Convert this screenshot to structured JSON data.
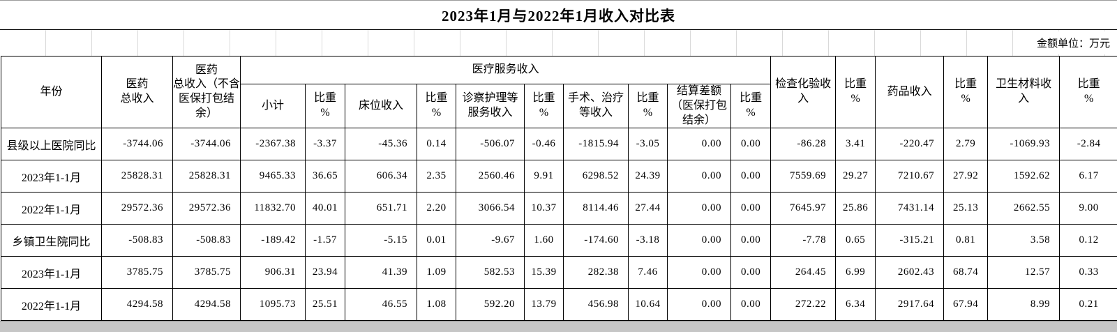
{
  "title": "2023年1月与2022年1月收入对比表",
  "unit_note": "金额单位：万元",
  "header": {
    "year": "年份",
    "med_total_income": "医药\n总收入",
    "med_total_income_excl": "医药\n总收入（不含\n医保打包结\n余）",
    "medical_service_income": "医疗服务收入",
    "subtotal": "小计",
    "weight": "比重\n%",
    "bed_income": "床位收入",
    "exam_nursing_income": "诊察护理等\n服务收入",
    "surgery_income": "手术、治疗\n等收入",
    "settlement_diff": "结算差额\n（医保打包\n结余）",
    "lab_income": "检查化验收\n入",
    "drug_income": "药品收入",
    "material_income": "卫生材料收\n入"
  },
  "rows": [
    {
      "label": "县级以上医院同比",
      "values": [
        "-3744.06",
        "-3744.06",
        "-2367.38",
        "-3.37",
        "-45.36",
        "0.14",
        "-506.07",
        "-0.46",
        "-1815.94",
        "-3.05",
        "0.00",
        "0.00",
        "-86.28",
        "3.41",
        "-220.47",
        "2.79",
        "-1069.93",
        "-2.84"
      ]
    },
    {
      "label": "2023年1-1月",
      "values": [
        "25828.31",
        "25828.31",
        "9465.33",
        "36.65",
        "606.34",
        "2.35",
        "2560.46",
        "9.91",
        "6298.52",
        "24.39",
        "0.00",
        "0.00",
        "7559.69",
        "29.27",
        "7210.67",
        "27.92",
        "1592.62",
        "6.17"
      ]
    },
    {
      "label": "2022年1-1月",
      "values": [
        "29572.36",
        "29572.36",
        "11832.70",
        "40.01",
        "651.71",
        "2.20",
        "3066.54",
        "10.37",
        "8114.46",
        "27.44",
        "0.00",
        "0.00",
        "7645.97",
        "25.86",
        "7431.14",
        "25.13",
        "2662.55",
        "9.00"
      ]
    },
    {
      "label": "乡镇卫生院同比",
      "values": [
        "-508.83",
        "-508.83",
        "-189.42",
        "-1.57",
        "-5.15",
        "0.01",
        "-9.67",
        "1.60",
        "-174.60",
        "-3.18",
        "0.00",
        "0.00",
        "-7.78",
        "0.65",
        "-315.21",
        "0.81",
        "3.58",
        "0.12"
      ]
    },
    {
      "label": "2023年1-1月",
      "values": [
        "3785.75",
        "3785.75",
        "906.31",
        "23.94",
        "41.39",
        "1.09",
        "582.53",
        "15.39",
        "282.38",
        "7.46",
        "0.00",
        "0.00",
        "264.45",
        "6.99",
        "2602.43",
        "68.74",
        "12.57",
        "0.33"
      ]
    },
    {
      "label": "2022年1-1月",
      "values": [
        "4294.58",
        "4294.58",
        "1095.73",
        "25.51",
        "46.55",
        "1.08",
        "592.20",
        "13.79",
        "456.98",
        "10.64",
        "0.00",
        "0.00",
        "272.22",
        "6.34",
        "2917.64",
        "67.94",
        "8.99",
        "0.21"
      ]
    }
  ]
}
